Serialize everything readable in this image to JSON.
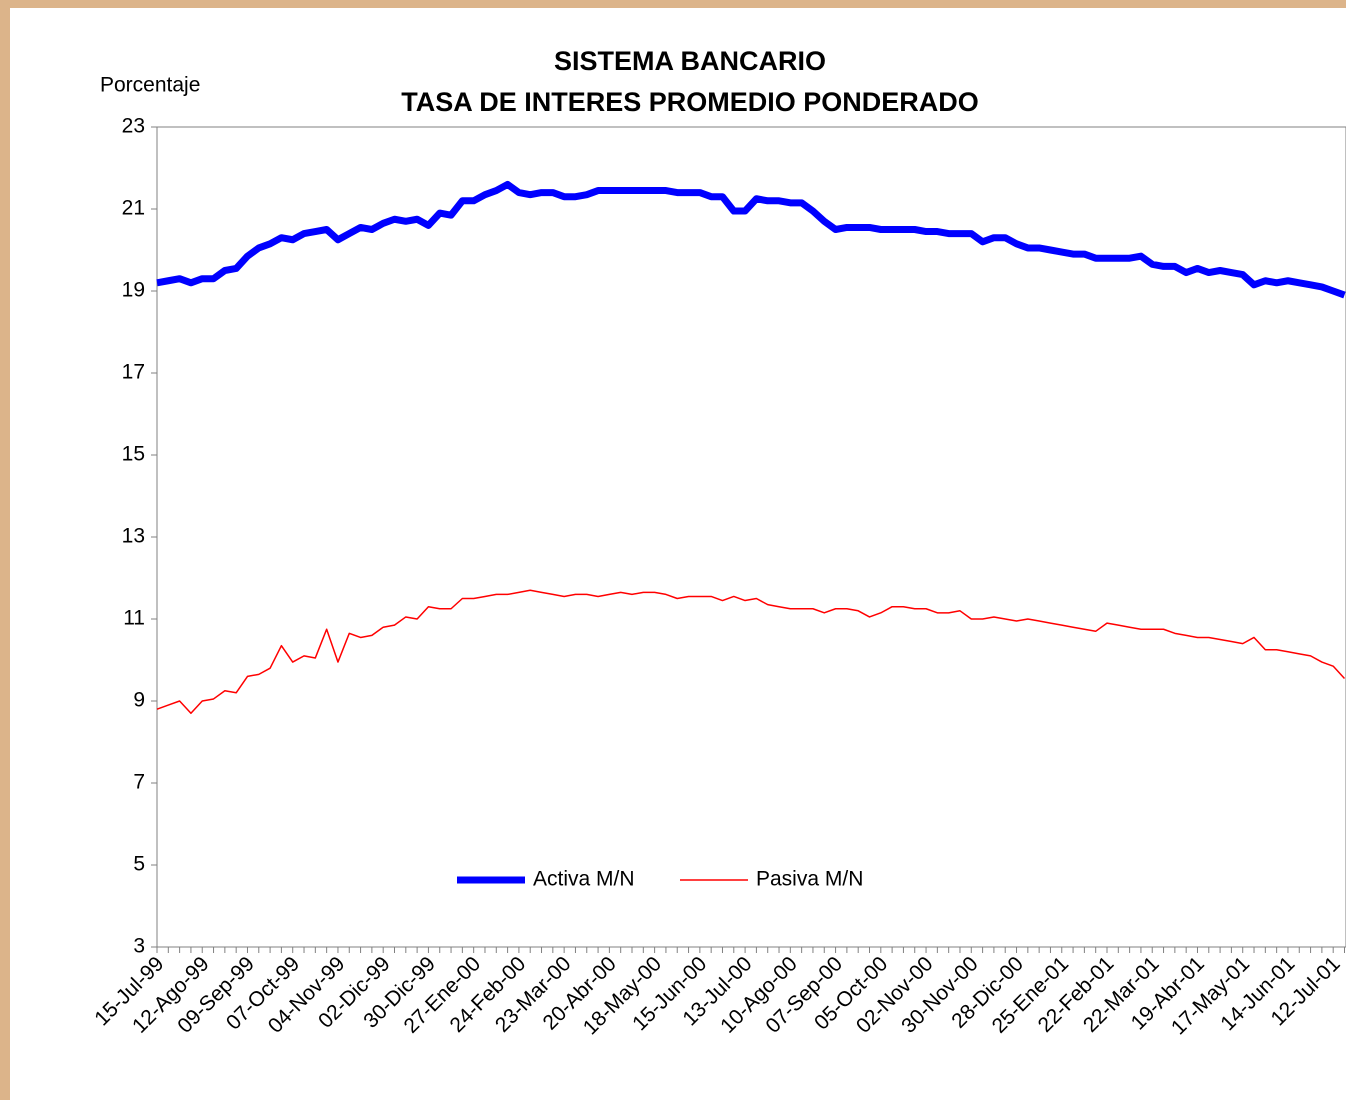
{
  "chart_data": {
    "type": "line",
    "title": "SISTEMA BANCARIO",
    "subtitle": "TASA DE INTERES PROMEDIO PONDERADO",
    "y_label": "Porcentaje",
    "categories": [
      "15-Jul-99",
      null,
      null,
      null,
      "12-Ago-99",
      null,
      null,
      null,
      "09-Sep-99",
      null,
      null,
      null,
      "07-Oct-99",
      null,
      null,
      null,
      "04-Nov-99",
      null,
      null,
      null,
      "02-Dic-99",
      null,
      null,
      null,
      "30-Dic-99",
      null,
      null,
      null,
      "27-Ene-00",
      null,
      null,
      null,
      "24-Feb-00",
      null,
      null,
      null,
      "23-Mar-00",
      null,
      null,
      null,
      "20-Abr-00",
      null,
      null,
      null,
      "18-May-00",
      null,
      null,
      null,
      "15-Jun-00",
      null,
      null,
      null,
      "13-Jul-00",
      null,
      null,
      null,
      "10-Ago-00",
      null,
      null,
      null,
      "07-Sep-00",
      null,
      null,
      null,
      "05-Oct-00",
      null,
      null,
      null,
      "02-Nov-00",
      null,
      null,
      null,
      "30-Nov-00",
      null,
      null,
      null,
      "28-Dic-00",
      null,
      null,
      null,
      "25-Ene-01",
      null,
      null,
      null,
      "22-Feb-01",
      null,
      null,
      null,
      "22-Mar-01",
      null,
      null,
      null,
      "19-Abr-01",
      null,
      null,
      null,
      "17-May-01",
      null,
      null,
      null,
      "14-Jun-01",
      null,
      null,
      null,
      "12-Jul-01",
      null
    ],
    "series": [
      {
        "name": "Activa M/N",
        "color": "#0000ff",
        "width": 7,
        "values": [
          19.2,
          19.25,
          19.3,
          19.2,
          19.3,
          19.3,
          19.5,
          19.55,
          19.85,
          20.05,
          20.15,
          20.3,
          20.25,
          20.4,
          20.45,
          20.5,
          20.25,
          20.4,
          20.55,
          20.5,
          20.65,
          20.75,
          20.7,
          20.75,
          20.6,
          20.9,
          20.85,
          21.2,
          21.2,
          21.35,
          21.45,
          21.6,
          21.4,
          21.35,
          21.4,
          21.4,
          21.3,
          21.3,
          21.35,
          21.45,
          21.45,
          21.45,
          21.45,
          21.45,
          21.45,
          21.45,
          21.4,
          21.4,
          21.4,
          21.3,
          21.3,
          20.95,
          20.95,
          21.25,
          21.2,
          21.2,
          21.15,
          21.15,
          20.95,
          20.7,
          20.5,
          20.55,
          20.55,
          20.55,
          20.5,
          20.5,
          20.5,
          20.5,
          20.45,
          20.45,
          20.4,
          20.4,
          20.4,
          20.2,
          20.3,
          20.3,
          20.15,
          20.05,
          20.05,
          20.0,
          19.95,
          19.9,
          19.9,
          19.8,
          19.8,
          19.8,
          19.8,
          19.85,
          19.65,
          19.6,
          19.6,
          19.45,
          19.55,
          19.45,
          19.5,
          19.45,
          19.4,
          19.15,
          19.25,
          19.2,
          19.25,
          19.2,
          19.15,
          19.1,
          19.0,
          18.9
        ]
      },
      {
        "name": "Pasiva M/N",
        "color": "#ff0000",
        "width": 1.5,
        "values": [
          8.8,
          8.9,
          9.0,
          8.7,
          9.0,
          9.05,
          9.25,
          9.2,
          9.6,
          9.65,
          9.8,
          10.35,
          9.95,
          10.1,
          10.05,
          10.75,
          9.95,
          10.65,
          10.55,
          10.6,
          10.8,
          10.85,
          11.05,
          11.0,
          11.3,
          11.25,
          11.25,
          11.5,
          11.5,
          11.55,
          11.6,
          11.6,
          11.65,
          11.7,
          11.65,
          11.6,
          11.55,
          11.6,
          11.6,
          11.55,
          11.6,
          11.65,
          11.6,
          11.65,
          11.65,
          11.6,
          11.5,
          11.55,
          11.55,
          11.55,
          11.45,
          11.55,
          11.45,
          11.5,
          11.35,
          11.3,
          11.25,
          11.25,
          11.25,
          11.15,
          11.25,
          11.25,
          11.2,
          11.05,
          11.15,
          11.3,
          11.3,
          11.25,
          11.25,
          11.15,
          11.15,
          11.2,
          11.0,
          11.0,
          11.05,
          11.0,
          10.95,
          11.0,
          10.95,
          10.9,
          10.85,
          10.8,
          10.75,
          10.7,
          10.9,
          10.85,
          10.8,
          10.75,
          10.75,
          10.75,
          10.65,
          10.6,
          10.55,
          10.55,
          10.5,
          10.45,
          10.4,
          10.55,
          10.25,
          10.25,
          10.2,
          10.15,
          10.1,
          9.95,
          9.85,
          9.55
        ]
      }
    ],
    "ylim": [
      3,
      23
    ],
    "yticks": [
      3,
      5,
      7,
      9,
      11,
      13,
      15,
      17,
      19,
      21,
      23
    ],
    "grid": false,
    "legend": "lower center"
  }
}
